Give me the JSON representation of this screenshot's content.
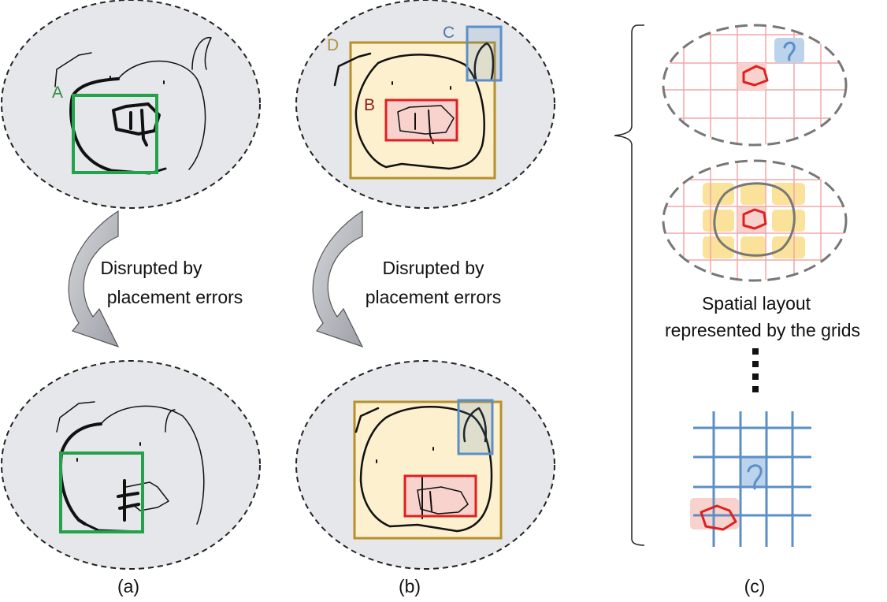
{
  "panels": {
    "a": {
      "caption": "(a)",
      "label_a": "A",
      "arrow_text_line1": "Disrupted by",
      "arrow_text_line2": "placement errors"
    },
    "b": {
      "caption": "(b)",
      "label_b": "B",
      "label_c": "C",
      "label_d": "D",
      "arrow_text_line1": "Disrupted by",
      "arrow_text_line2": "placement errors"
    },
    "c": {
      "caption": "(c)",
      "grid_text_line1": "Spatial layout",
      "grid_text_line2": "represented by the grids"
    }
  },
  "colors": {
    "ellipse_fill": "#e6e7eb",
    "box_a": "#22a24a",
    "box_b": "#e02020",
    "box_c": "#5b8fc7",
    "box_d": "#b8902a",
    "label_a": "#2e8b3e",
    "label_b": "#8b1a1a",
    "label_c": "#4a78b0",
    "label_d": "#b09040",
    "grid_pink": "#f3a5a8",
    "grid_blue": "#5b8fc7",
    "yellow_cell": "#fbe29a",
    "arrow_fill": "#b9bcc2"
  }
}
